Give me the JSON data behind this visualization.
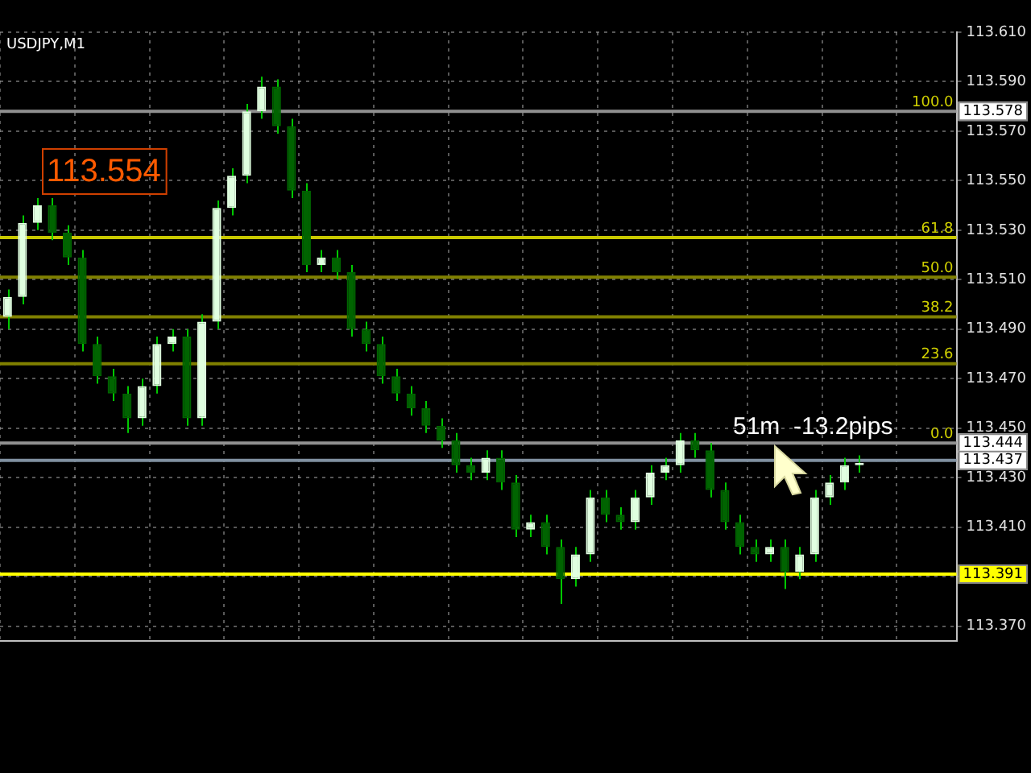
{
  "chart_data": {
    "type": "candlestick",
    "categories": [
      null,
      null,
      null,
      null,
      null,
      null,
      null,
      null,
      null,
      null,
      null,
      null,
      null,
      null,
      null,
      null,
      null,
      null,
      null,
      null,
      null,
      null,
      null,
      null,
      null,
      null,
      null,
      null,
      null,
      null,
      null,
      null,
      null,
      null,
      null,
      null,
      null,
      null,
      null,
      null,
      null,
      null,
      null,
      null,
      null,
      null,
      null,
      null,
      null,
      null,
      null,
      null,
      null,
      null,
      null,
      null,
      null,
      null,
      null,
      null,
      null,
      null,
      null,
      null
    ],
    "ohlc": [
      [
        113.495,
        113.506,
        113.49,
        113.503
      ],
      [
        113.503,
        113.536,
        113.5,
        113.533
      ],
      [
        113.533,
        113.543,
        113.53,
        113.54
      ],
      [
        113.54,
        113.543,
        113.526,
        113.529
      ],
      [
        113.529,
        113.532,
        113.516,
        113.519
      ],
      [
        113.519,
        113.522,
        113.481,
        113.484
      ],
      [
        113.484,
        113.487,
        113.468,
        113.471
      ],
      [
        113.471,
        113.474,
        113.461,
        113.464
      ],
      [
        113.464,
        113.467,
        113.448,
        113.454
      ],
      [
        113.454,
        113.47,
        113.451,
        113.467
      ],
      [
        113.467,
        113.487,
        113.464,
        113.484
      ],
      [
        113.484,
        113.49,
        113.481,
        113.487
      ],
      [
        113.487,
        113.49,
        113.451,
        113.454
      ],
      [
        113.454,
        113.496,
        113.451,
        113.493
      ],
      [
        113.493,
        113.542,
        113.49,
        113.539
      ],
      [
        113.539,
        113.555,
        113.536,
        113.552
      ],
      [
        113.552,
        113.581,
        113.549,
        113.578
      ],
      [
        113.578,
        113.592,
        113.575,
        113.588
      ],
      [
        113.588,
        113.591,
        113.569,
        113.572
      ],
      [
        113.572,
        113.575,
        113.543,
        113.546
      ],
      [
        113.546,
        113.549,
        113.513,
        113.516
      ],
      [
        113.516,
        113.522,
        113.513,
        113.519
      ],
      [
        113.519,
        113.522,
        113.51,
        113.513
      ],
      [
        113.513,
        113.516,
        113.487,
        113.49
      ],
      [
        113.49,
        113.493,
        113.481,
        113.484
      ],
      [
        113.484,
        113.487,
        113.468,
        113.471
      ],
      [
        113.471,
        113.474,
        113.461,
        113.464
      ],
      [
        113.464,
        113.467,
        113.455,
        113.458
      ],
      [
        113.458,
        113.461,
        113.448,
        113.451
      ],
      [
        113.451,
        113.454,
        113.442,
        113.445
      ],
      [
        113.445,
        113.448,
        113.432,
        113.435
      ],
      [
        113.435,
        113.438,
        113.429,
        113.432
      ],
      [
        113.432,
        113.441,
        113.429,
        113.438
      ],
      [
        113.438,
        113.441,
        113.425,
        113.428
      ],
      [
        113.428,
        113.431,
        113.406,
        113.409
      ],
      [
        113.409,
        113.415,
        113.406,
        113.412
      ],
      [
        113.412,
        113.415,
        113.399,
        113.402
      ],
      [
        113.402,
        113.405,
        113.379,
        113.389
      ],
      [
        113.389,
        113.402,
        113.386,
        113.399
      ],
      [
        113.399,
        113.425,
        113.396,
        113.422
      ],
      [
        113.422,
        113.425,
        113.412,
        113.415
      ],
      [
        113.415,
        113.418,
        113.409,
        113.412
      ],
      [
        113.412,
        113.425,
        113.409,
        113.422
      ],
      [
        113.422,
        113.435,
        113.419,
        113.432
      ],
      [
        113.432,
        113.438,
        113.429,
        113.435
      ],
      [
        113.435,
        113.448,
        113.432,
        113.445
      ],
      [
        113.445,
        113.448,
        113.438,
        113.441
      ],
      [
        113.441,
        113.444,
        113.422,
        113.425
      ],
      [
        113.425,
        113.428,
        113.409,
        113.412
      ],
      [
        113.412,
        113.415,
        113.399,
        113.402
      ],
      [
        113.402,
        113.405,
        113.396,
        113.399
      ],
      [
        113.399,
        113.405,
        113.396,
        113.402
      ],
      [
        113.402,
        113.405,
        113.385,
        113.392
      ],
      [
        113.392,
        113.402,
        113.389,
        113.399
      ],
      [
        113.399,
        113.425,
        113.396,
        113.422
      ],
      [
        113.422,
        113.431,
        113.419,
        113.428
      ],
      [
        113.428,
        113.438,
        113.425,
        113.435
      ],
      [
        113.435,
        113.439,
        113.432,
        113.436
      ],
      null,
      null,
      null,
      null,
      null,
      null
    ],
    "color": "#00c800",
    "colors": [
      "#e0ffe0",
      "#e0ffe0",
      "#e0ffe0",
      "#006400",
      "#006400",
      "#006400",
      "#006400",
      "#006400",
      "#006400",
      "#e0ffe0",
      "#e0ffe0",
      "#e0ffe0",
      "#006400",
      "#e0ffe0",
      "#e0ffe0",
      "#e0ffe0",
      "#e0ffe0",
      "#e0ffe0",
      "#006400",
      "#006400",
      "#006400",
      "#e0ffe0",
      "#006400",
      "#006400",
      "#006400",
      "#006400",
      "#006400",
      "#006400",
      "#006400",
      "#006400",
      "#006400",
      "#006400",
      "#e0ffe0",
      "#006400",
      "#006400",
      "#e0ffe0",
      "#006400",
      "#006400",
      "#e0ffe0",
      "#e0ffe0",
      "#006400",
      "#006400",
      "#e0ffe0",
      "#e0ffe0",
      "#e0ffe0",
      "#e0ffe0",
      "#006400",
      "#006400",
      "#006400",
      "#006400",
      "#006400",
      "#e0ffe0",
      "#006400",
      "#e0ffe0",
      "#e0ffe0",
      "#e0ffe0",
      "#e0ffe0",
      "#e0ffe0",
      null,
      null,
      null,
      null,
      null,
      null
    ],
    "ylim": [
      113.364,
      113.61
    ],
    "yticks": [
      {
        "value": 113.37,
        "label": "113.370"
      },
      {
        "value": 113.39,
        "label": null
      },
      {
        "value": 113.41,
        "label": "113.410"
      },
      {
        "value": 113.43,
        "label": "113.430"
      },
      {
        "value": 113.45,
        "label": "113.450"
      },
      {
        "value": 113.47,
        "label": "113.470"
      },
      {
        "value": 113.49,
        "label": "113.490"
      },
      {
        "value": 113.51,
        "label": "113.510"
      },
      {
        "value": 113.53,
        "label": "113.530"
      },
      {
        "value": 113.55,
        "label": "113.550"
      },
      {
        "value": 113.57,
        "label": "113.570"
      },
      {
        "value": 113.59,
        "label": "113.590"
      },
      {
        "value": 113.61,
        "label": "113.610"
      }
    ],
    "tick_labels": "y",
    "grid": true,
    "ref_lines": [
      {
        "axis": "y",
        "value": 113.578,
        "label": "113.578",
        "color": "#909090"
      },
      {
        "axis": "y",
        "value": 113.527,
        "label": null,
        "color": "#c8c800"
      },
      {
        "axis": "y",
        "value": 113.511,
        "label": null,
        "color": "#808000"
      },
      {
        "axis": "y",
        "value": 113.495,
        "label": null,
        "color": "#808000"
      },
      {
        "axis": "y",
        "value": 113.476,
        "label": null,
        "color": "#808000"
      },
      {
        "axis": "y",
        "value": 113.444,
        "label": "113.444",
        "color": "#909090"
      },
      {
        "axis": "y",
        "value": 113.437,
        "label": "113.437",
        "color": "#8090a0"
      },
      {
        "axis": "y",
        "value": 113.391,
        "label": "113.391",
        "color": "#ffff00"
      }
    ],
    "annotations": [
      "USDJPY,M1",
      "113.554",
      "51m  -13.2pips",
      {
        "text": "100.0",
        "y": 113.578
      },
      {
        "text": "61.8",
        "y": 113.527
      },
      {
        "text": "50.0",
        "y": 113.511
      },
      {
        "text": "38.2",
        "y": 113.495
      },
      {
        "text": "23.6",
        "y": 113.476
      },
      {
        "text": "0.0",
        "y": 113.444
      }
    ]
  }
}
